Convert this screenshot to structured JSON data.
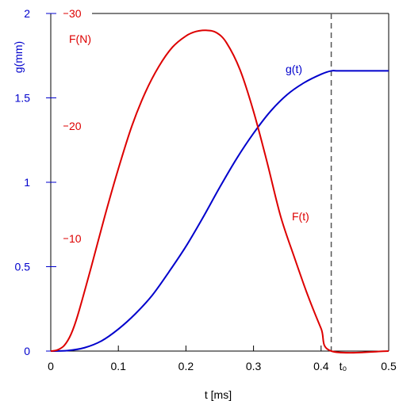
{
  "chart_data": {
    "type": "line",
    "xlabel": "t [ms]",
    "xlim": [
      0,
      0.5
    ],
    "x_ticks": [
      "0",
      "0.1",
      "0.2",
      "0.3",
      "0.4",
      "0.5"
    ],
    "y_left": {
      "label": "g(mm)",
      "color": "#0000cc",
      "lim": [
        0,
        2
      ],
      "ticks": [
        "0",
        "0.5",
        "1",
        "1.5",
        "2"
      ]
    },
    "y_right": {
      "label": "F(N)",
      "color": "#dd0000",
      "lim": [
        0,
        30
      ],
      "ticks": [
        "10",
        "20",
        "30"
      ]
    },
    "series": [
      {
        "name": "g(t)",
        "axis": "g",
        "color": "#0000cc",
        "x": [
          0,
          0.025,
          0.05,
          0.075,
          0.1,
          0.125,
          0.15,
          0.175,
          0.2,
          0.225,
          0.25,
          0.275,
          0.3,
          0.325,
          0.35,
          0.375,
          0.4,
          0.415,
          0.425,
          0.45,
          0.475,
          0.5
        ],
        "values": [
          0,
          0.003,
          0.02,
          0.06,
          0.13,
          0.22,
          0.33,
          0.47,
          0.62,
          0.79,
          0.97,
          1.14,
          1.29,
          1.42,
          1.52,
          1.59,
          1.64,
          1.66,
          1.66,
          1.66,
          1.66,
          1.66
        ]
      },
      {
        "name": "F(t)",
        "axis": "F",
        "color": "#dd0000",
        "x": [
          0,
          0.01,
          0.02,
          0.03,
          0.04,
          0.06,
          0.08,
          0.1,
          0.12,
          0.14,
          0.16,
          0.18,
          0.2,
          0.215,
          0.23,
          0.245,
          0.26,
          0.28,
          0.3,
          0.32,
          0.34,
          0.36,
          0.38,
          0.4,
          0.415,
          0.5
        ],
        "values": [
          0,
          0.1,
          0.5,
          1.5,
          3.2,
          7.5,
          12.0,
          16.2,
          20.0,
          23.0,
          25.3,
          27.0,
          28.0,
          28.4,
          28.5,
          28.3,
          27.4,
          25.0,
          21.3,
          16.8,
          12.0,
          8.4,
          5.0,
          2.0,
          0,
          0
        ]
      }
    ],
    "annotations": [
      {
        "text": "t₀",
        "x": 0.415,
        "style": "dashed vertical line"
      }
    ],
    "grid": false,
    "legend": "none"
  }
}
